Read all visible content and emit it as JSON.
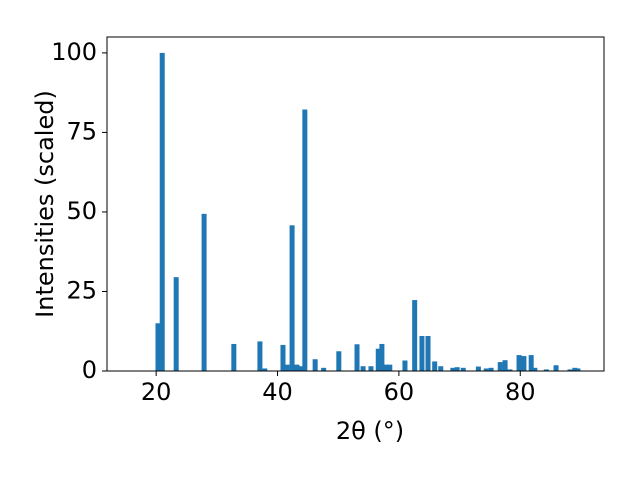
{
  "chart_data": {
    "type": "bar",
    "x_label": "2θ (°)",
    "y_label": "Intensities (scaled)",
    "x": [
      20.3,
      21.0,
      23.3,
      27.9,
      32.8,
      37.1,
      37.9,
      40.9,
      41.6,
      42.4,
      43.2,
      43.7,
      44.5,
      46.2,
      47.6,
      50.1,
      53.1,
      54.1,
      55.4,
      56.6,
      57.2,
      57.9,
      58.5,
      61.0,
      62.6,
      63.8,
      64.8,
      65.9,
      66.9,
      68.9,
      69.6,
      70.6,
      73.1,
      74.4,
      75.2,
      76.7,
      77.5,
      78.3,
      79.8,
      80.6,
      81.8,
      82.4,
      84.3,
      85.9,
      88.2,
      89.0,
      89.5
    ],
    "values": [
      15,
      100,
      29.5,
      49.4,
      8.5,
      9.3,
      0.8,
      8.2,
      2,
      45.8,
      2,
      1.5,
      82.2,
      3.7,
      1,
      6.2,
      8.4,
      1.5,
      1.5,
      7,
      8.5,
      2,
      2,
      3.3,
      22.3,
      11,
      11,
      3,
      1.5,
      1,
      1.2,
      1,
      1.4,
      0.8,
      1,
      2.8,
      3.4,
      0.5,
      5,
      4.7,
      5,
      1,
      0.5,
      1.8,
      0.5,
      1,
      0.8
    ],
    "color": "#1f77b4",
    "xlim": [
      11.9,
      93.8
    ],
    "ylim": [
      0,
      105
    ],
    "xticks": [
      20,
      40,
      60,
      80
    ],
    "yticks": [
      0,
      25,
      50,
      75,
      100
    ]
  }
}
